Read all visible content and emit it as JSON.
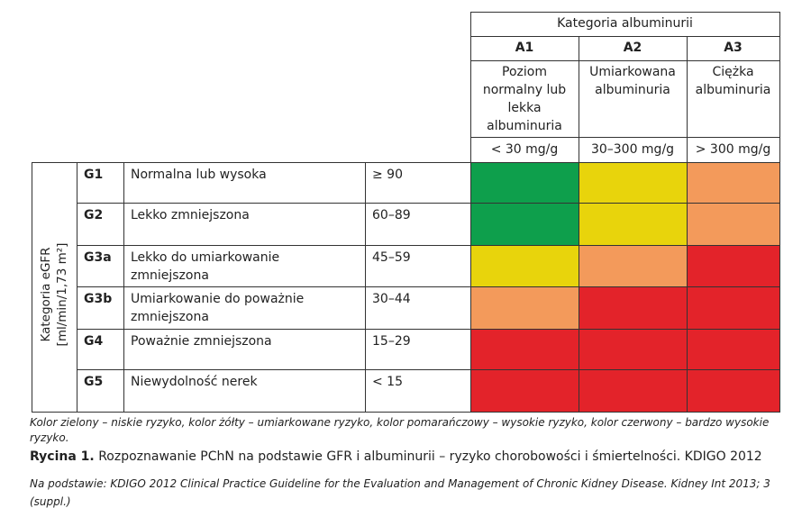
{
  "header": {
    "title": "Kategoria albuminurii",
    "columns": [
      {
        "code": "A1",
        "description": "Poziom normalny lub lekka albuminuria",
        "range": "< 30 mg/g"
      },
      {
        "code": "A2",
        "description": "Umiarkowana albuminuria",
        "range": "30–300 mg/g"
      },
      {
        "code": "A3",
        "description": "Ciężka albuminuria",
        "range": "> 300 mg/g"
      }
    ]
  },
  "side_label": {
    "line1": "Kategoria eGFR",
    "line2": "[ml/min/1,73 m²]"
  },
  "rows": [
    {
      "code": "G1",
      "label": "Normalna lub wysoka",
      "range": "≥ 90",
      "colors": [
        "#0e9f4c",
        "#e8d40c",
        "#f39a5b"
      ]
    },
    {
      "code": "G2",
      "label": "Lekko zmniejszona",
      "range": "60–89",
      "colors": [
        "#0e9f4c",
        "#e8d40c",
        "#f39a5b"
      ]
    },
    {
      "code": "G3a",
      "label": "Lekko do umiarkowanie zmniejszona",
      "range": "45–59",
      "colors": [
        "#e8d40c",
        "#f39a5b",
        "#e3232a"
      ]
    },
    {
      "code": "G3b",
      "label": "Umiarkowanie do poważnie zmniejszona",
      "range": "30–44",
      "colors": [
        "#f39a5b",
        "#e3232a",
        "#e3232a"
      ]
    },
    {
      "code": "G4",
      "label": "Poważnie zmniejszona",
      "range": "15–29",
      "colors": [
        "#e3232a",
        "#e3232a",
        "#e3232a"
      ]
    },
    {
      "code": "G5",
      "label": "Niewydolność nerek",
      "range": "< 15",
      "colors": [
        "#e3232a",
        "#e3232a",
        "#e3232a"
      ]
    }
  ],
  "legend_note": "Kolor zielony – niskie ryzyko, kolor żółty – umiarkowane ryzyko, kolor pomarańczowy – wysokie ryzyko, kolor czerwony – bardzo wysokie ryzyko.",
  "caption": {
    "label": "Rycina 1.",
    "text": "Rozpoznawanie PChN na podstawie GFR i albuminurii – ryzyko chorobowości i śmiertelności. KDIGO 2012"
  },
  "source": "Na podstawie: KDIGO 2012 Clinical Practice Guideline for the Evaluation and Management of Chronic Kidney Disease. Kidney Int 2013; 3 (suppl.)"
}
